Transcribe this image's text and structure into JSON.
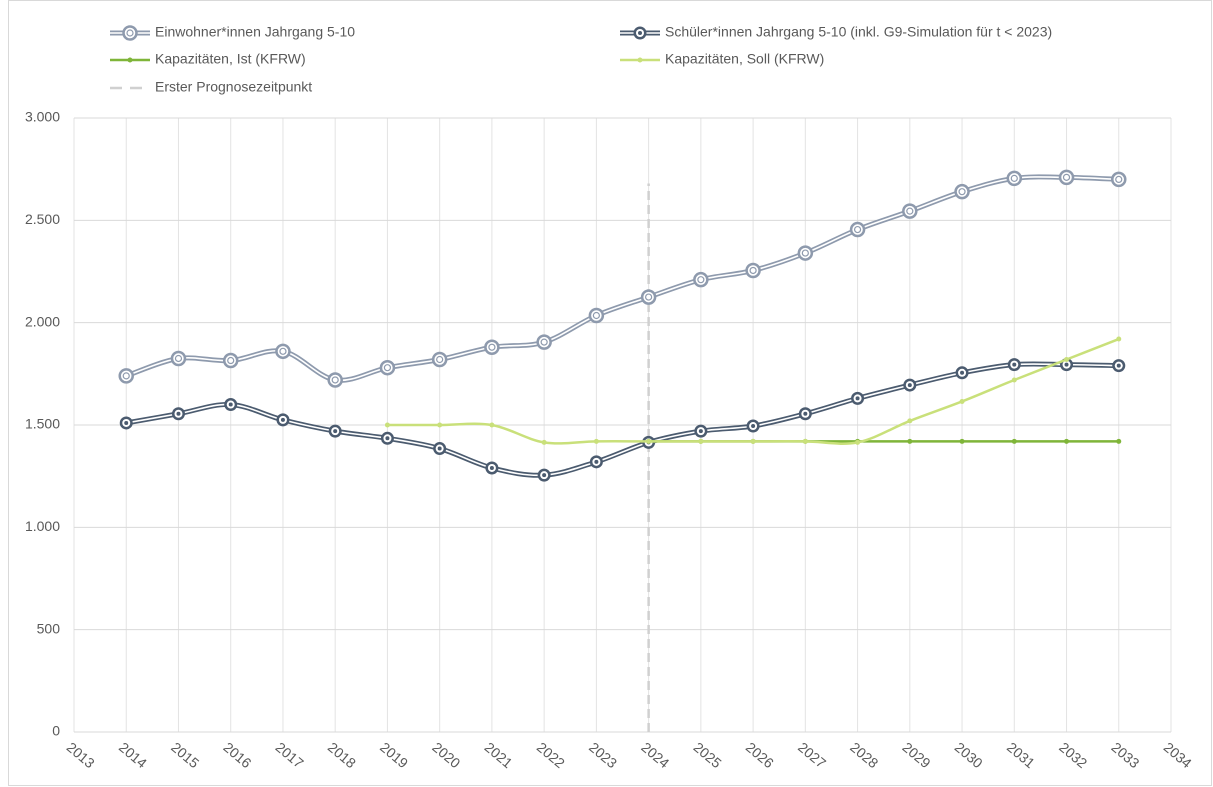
{
  "chart_data": {
    "type": "line",
    "x": [
      2014,
      2015,
      2016,
      2017,
      2018,
      2019,
      2020,
      2021,
      2022,
      2023,
      2024,
      2025,
      2026,
      2027,
      2028,
      2029,
      2030,
      2031,
      2032,
      2033
    ],
    "series": [
      {
        "name": "Einwohner*innen Jahrgang 5-10",
        "color": "#8e9aad",
        "style": "double-ring",
        "values": [
          1740,
          1825,
          1815,
          1860,
          1720,
          1780,
          1820,
          1880,
          1905,
          2035,
          2125,
          2210,
          2255,
          2340,
          2455,
          2545,
          2640,
          2705,
          2710,
          2700
        ]
      },
      {
        "name": "Schüler*innen Jahrgang 5-10 (inkl. G9-Simulation für t < 2023)",
        "color": "#4b5b6f",
        "style": "double-dot",
        "values": [
          1510,
          1555,
          1600,
          1525,
          1470,
          1435,
          1385,
          1290,
          1255,
          1320,
          1415,
          1470,
          1495,
          1555,
          1630,
          1695,
          1755,
          1795,
          1795,
          1790
        ]
      },
      {
        "name": "Kapazitäten, Ist (KFRW)",
        "color": "#7fb539",
        "style": "plain",
        "values": [
          null,
          null,
          null,
          null,
          null,
          null,
          null,
          null,
          null,
          null,
          1420,
          1420,
          1420,
          1420,
          1420,
          1420,
          1420,
          1420,
          1420,
          1420
        ]
      },
      {
        "name": "Kapazitäten, Soll (KFRW)",
        "color": "#c9e07a",
        "style": "plain",
        "values": [
          null,
          null,
          null,
          null,
          null,
          1500,
          1500,
          1500,
          1415,
          1420,
          1420,
          1420,
          1420,
          1420,
          1415,
          1520,
          1615,
          1720,
          1820,
          1920
        ]
      }
    ],
    "reference_line": {
      "name": "Erster Prognosezeitpunkt",
      "x": 2024,
      "values": [
        0,
        2680
      ],
      "color": "#d0d0d0"
    },
    "xlim": [
      2013,
      2034
    ],
    "xticks": [
      2013,
      2014,
      2015,
      2016,
      2017,
      2018,
      2019,
      2020,
      2021,
      2022,
      2023,
      2024,
      2025,
      2026,
      2027,
      2028,
      2029,
      2030,
      2031,
      2032,
      2033,
      2034
    ],
    "ylim": [
      0,
      3000
    ],
    "yticks": [
      0,
      500,
      {
        "value": 1000,
        "label": "1.000"
      },
      {
        "value": 1500,
        "label": "1.500"
      },
      {
        "value": 2000,
        "label": "2.000"
      },
      {
        "value": 2500,
        "label": "2.500"
      },
      {
        "value": 3000,
        "label": "3.000"
      }
    ],
    "grid": true,
    "legend": "top"
  }
}
